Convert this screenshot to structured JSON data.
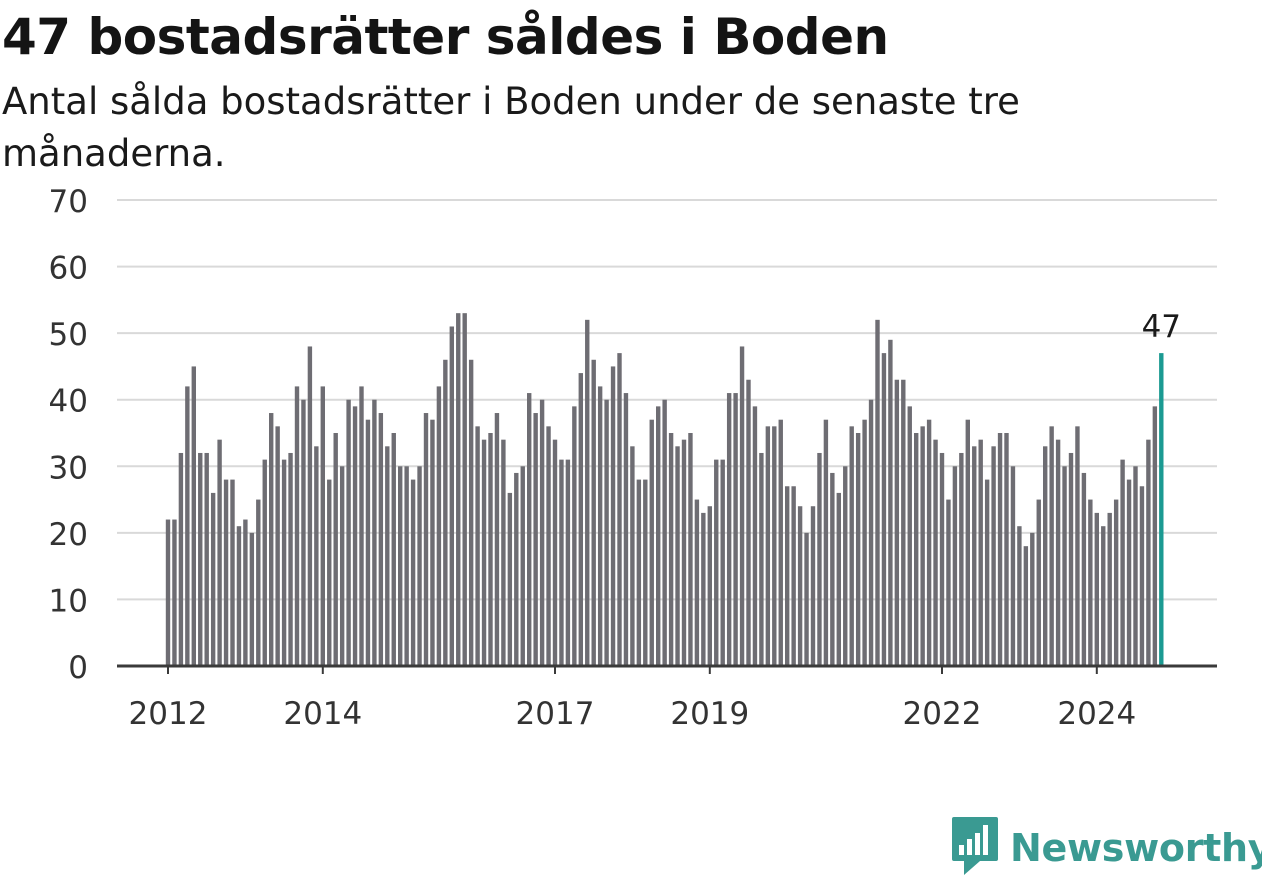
{
  "header": {
    "title": "47 bostadsrätter såldes i Boden",
    "subtitle": "Antal sålda bostadsrätter i Boden under de senaste tre månaderna."
  },
  "logo": {
    "text": "Newsworthy",
    "icon": "bar-chart-speech-bubble-icon",
    "color": "#3a9a92"
  },
  "chart_data": {
    "type": "bar",
    "title": "47 bostadsrätter såldes i Boden",
    "subtitle": "Antal sålda bostadsrätter i Boden under de senaste tre månaderna.",
    "xlabel": "",
    "ylabel": "",
    "ylim": [
      0,
      70
    ],
    "yticks": [
      0,
      10,
      20,
      30,
      40,
      50,
      60,
      70
    ],
    "grid": true,
    "x_tick_labels": [
      "2012",
      "2014",
      "2017",
      "2019",
      "2022",
      "2024"
    ],
    "x": [
      "2012-01",
      "2012-02",
      "2012-03",
      "2012-04",
      "2012-05",
      "2012-06",
      "2012-07",
      "2012-08",
      "2012-09",
      "2012-10",
      "2012-11",
      "2012-12",
      "2013-01",
      "2013-02",
      "2013-03",
      "2013-04",
      "2013-05",
      "2013-06",
      "2013-07",
      "2013-08",
      "2013-09",
      "2013-10",
      "2013-11",
      "2013-12",
      "2014-01",
      "2014-02",
      "2014-03",
      "2014-04",
      "2014-05",
      "2014-06",
      "2014-07",
      "2014-08",
      "2014-09",
      "2014-10",
      "2014-11",
      "2014-12",
      "2015-01",
      "2015-02",
      "2015-03",
      "2015-04",
      "2015-05",
      "2015-06",
      "2015-07",
      "2015-08",
      "2015-09",
      "2015-10",
      "2015-11",
      "2015-12",
      "2016-01",
      "2016-02",
      "2016-03",
      "2016-04",
      "2016-05",
      "2016-06",
      "2016-07",
      "2016-08",
      "2016-09",
      "2016-10",
      "2016-11",
      "2016-12",
      "2017-01",
      "2017-02",
      "2017-03",
      "2017-04",
      "2017-05",
      "2017-06",
      "2017-07",
      "2017-08",
      "2017-09",
      "2017-10",
      "2017-11",
      "2017-12",
      "2018-01",
      "2018-02",
      "2018-03",
      "2018-04",
      "2018-05",
      "2018-06",
      "2018-07",
      "2018-08",
      "2018-09",
      "2018-10",
      "2018-11",
      "2018-12",
      "2019-01",
      "2019-02",
      "2019-03",
      "2019-04",
      "2019-05",
      "2019-06",
      "2019-07",
      "2019-08",
      "2019-09",
      "2019-10",
      "2019-11",
      "2019-12",
      "2020-01",
      "2020-02",
      "2020-03",
      "2020-04",
      "2020-05",
      "2020-06",
      "2020-07",
      "2020-08",
      "2020-09",
      "2020-10",
      "2020-11",
      "2020-12",
      "2021-01",
      "2021-02",
      "2021-03",
      "2021-04",
      "2021-05",
      "2021-06",
      "2021-07",
      "2021-08",
      "2021-09",
      "2021-10",
      "2021-11",
      "2021-12",
      "2022-01",
      "2022-02",
      "2022-03",
      "2022-04",
      "2022-05",
      "2022-06",
      "2022-07",
      "2022-08",
      "2022-09",
      "2022-10",
      "2022-11",
      "2022-12",
      "2023-01",
      "2023-02",
      "2023-03",
      "2023-04",
      "2023-05",
      "2023-06",
      "2023-07",
      "2023-08",
      "2023-09",
      "2023-10",
      "2023-11",
      "2023-12",
      "2024-01",
      "2024-02",
      "2024-03",
      "2024-04",
      "2024-05",
      "2024-06",
      "2024-07",
      "2024-08",
      "2024-09",
      "2024-10"
    ],
    "values": [
      22,
      22,
      32,
      42,
      45,
      32,
      32,
      26,
      34,
      28,
      28,
      21,
      22,
      20,
      25,
      31,
      38,
      36,
      31,
      32,
      42,
      40,
      48,
      33,
      42,
      28,
      35,
      30,
      40,
      39,
      42,
      37,
      40,
      38,
      33,
      35,
      30,
      30,
      28,
      30,
      38,
      37,
      42,
      46,
      51,
      53,
      53,
      46,
      36,
      34,
      35,
      38,
      34,
      26,
      29,
      30,
      41,
      38,
      40,
      36,
      34,
      31,
      31,
      39,
      44,
      52,
      46,
      42,
      40,
      45,
      47,
      41,
      33,
      28,
      28,
      37,
      39,
      40,
      35,
      33,
      34,
      35,
      25,
      23,
      24,
      31,
      31,
      41,
      41,
      48,
      43,
      39,
      32,
      36,
      36,
      37,
      27,
      27,
      24,
      20,
      24,
      32,
      37,
      29,
      26,
      30,
      36,
      35,
      37,
      40,
      52,
      47,
      49,
      43,
      43,
      39,
      35,
      36,
      37,
      34,
      32,
      25,
      30,
      32,
      37,
      33,
      34,
      28,
      33,
      35,
      35,
      30,
      21,
      18,
      20,
      25,
      33,
      36,
      34,
      30,
      32,
      36,
      29,
      25,
      23,
      21,
      23,
      25,
      31,
      28,
      30,
      27,
      34,
      39
    ],
    "highlight": {
      "x": "2024-11",
      "value": 47,
      "label": "47",
      "color": "#1b9a92"
    },
    "bar_color": "#6e6d73",
    "gridline_color": "#d9d9d9",
    "axis_color": "#3a3a3a"
  }
}
